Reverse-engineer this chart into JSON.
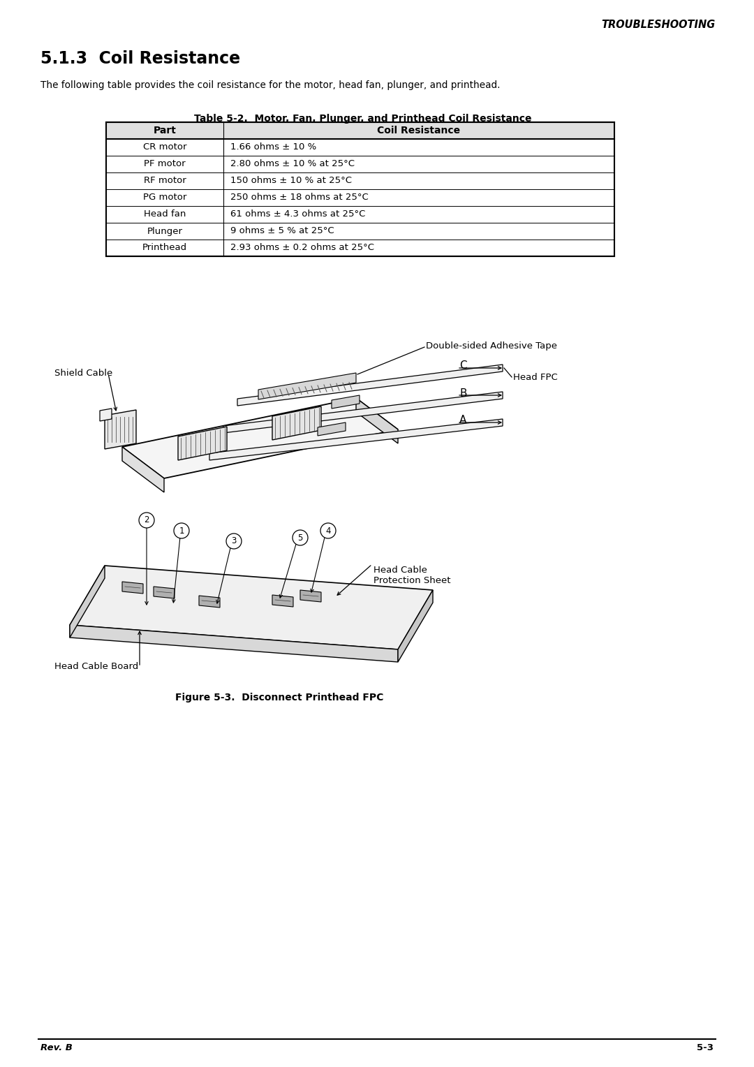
{
  "page_title": "TROUBLESHOOTING",
  "section_title": "5.1.3  Coil Resistance",
  "intro_text": "The following table provides the coil resistance for the motor, head fan, plunger, and printhead.",
  "table_title": "Table 5-2.  Motor, Fan, Plunger, and Printhead Coil Resistance",
  "table_headers": [
    "Part",
    "Coil Resistance"
  ],
  "table_rows": [
    [
      "CR motor",
      "1.66 ohms ± 10 %"
    ],
    [
      "PF motor",
      "2.80 ohms ± 10 % at 25°C"
    ],
    [
      "RF motor",
      "150 ohms ± 10 % at 25°C"
    ],
    [
      "PG motor",
      "250 ohms ± 18 ohms at 25°C"
    ],
    [
      "Head fan",
      "61 ohms ± 4.3 ohms at 25°C"
    ],
    [
      "Plunger",
      "9 ohms ± 5 % at 25°C"
    ],
    [
      "Printhead",
      "2.93 ohms ± 0.2 ohms at 25°C"
    ]
  ],
  "figure_caption": "Figure 5-3.  Disconnect Printhead FPC",
  "footer_left": "Rev. B",
  "footer_right": "5-3",
  "bg_color": "#ffffff",
  "text_color": "#000000"
}
